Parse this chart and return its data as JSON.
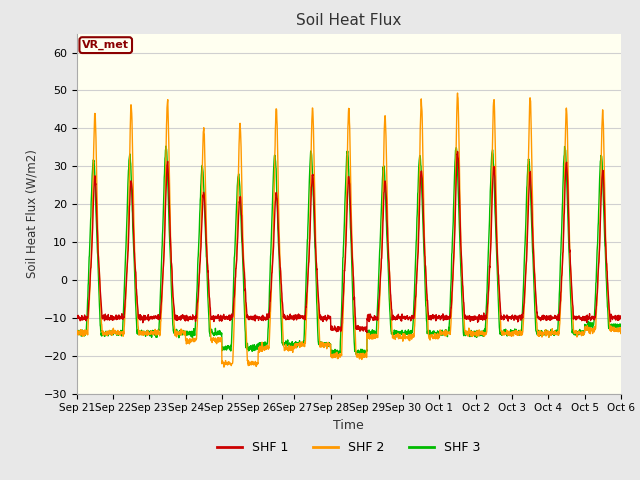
{
  "title": "Soil Heat Flux",
  "xlabel": "Time",
  "ylabel": "Soil Heat Flux (W/m2)",
  "ylim": [
    -30,
    65
  ],
  "yticks": [
    -30,
    -20,
    -10,
    0,
    10,
    20,
    30,
    40,
    50,
    60
  ],
  "xtick_labels": [
    "Sep 21",
    "Sep 22",
    "Sep 23",
    "Sep 24",
    "Sep 25",
    "Sep 26",
    "Sep 27",
    "Sep 28",
    "Sep 29",
    "Sep 30",
    "Oct 1",
    "Oct 2",
    "Oct 3",
    "Oct 4",
    "Oct 5",
    "Oct 6"
  ],
  "legend_labels": [
    "SHF 1",
    "SHF 2",
    "SHF 3"
  ],
  "colors": [
    "#cc0000",
    "#ff9900",
    "#00bb00"
  ],
  "annotation_text": "VR_met",
  "annotation_color": "#8B0000",
  "fig_facecolor": "#e8e8e8",
  "ax_facecolor": "#fffff0",
  "grid_color": "#d0d0d0",
  "n_days": 15,
  "points_per_day": 144,
  "peaks2": [
    44,
    46,
    47,
    40,
    41,
    45,
    45,
    45,
    43,
    47,
    49,
    48,
    48,
    45,
    44
  ],
  "peaks1": [
    27,
    26,
    31,
    23,
    22,
    23,
    28,
    27,
    26,
    29,
    34,
    30,
    28,
    31,
    29
  ],
  "peaks3": [
    32,
    33,
    35,
    30,
    28,
    33,
    34,
    34,
    30,
    33,
    35,
    34,
    32,
    35,
    33
  ],
  "nights2": [
    -14,
    -14,
    -14,
    -16,
    -22,
    -18,
    -17,
    -20,
    -15,
    -15,
    -14,
    -14,
    -14,
    -14,
    -13
  ],
  "nights1": [
    -10,
    -10,
    -10,
    -10,
    -10,
    -10,
    -10,
    -13,
    -10,
    -10,
    -10,
    -10,
    -10,
    -10,
    -10
  ],
  "nights3": [
    -14,
    -14,
    -14,
    -14,
    -18,
    -17,
    -17,
    -19,
    -14,
    -14,
    -14,
    -14,
    -14,
    -14,
    -12
  ]
}
